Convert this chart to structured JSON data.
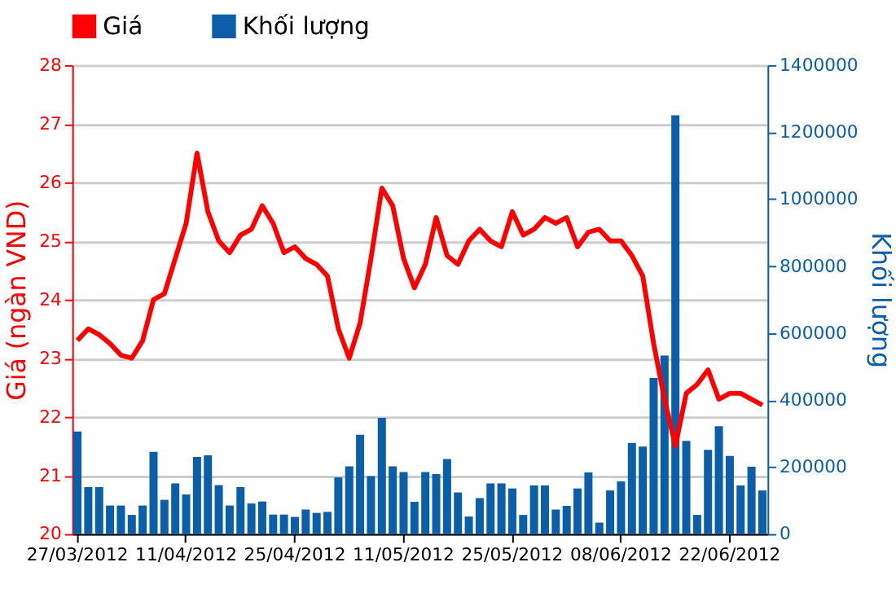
{
  "chart_data": {
    "type": "bar",
    "ylabel": "Giá (ngàn VND)",
    "y2label": "Khối lượng",
    "categories": [
      "27/03/2012",
      null,
      null,
      null,
      null,
      null,
      null,
      null,
      null,
      null,
      "11/04/2012",
      null,
      null,
      null,
      null,
      null,
      null,
      null,
      null,
      null,
      "25/04/2012",
      null,
      null,
      null,
      null,
      null,
      null,
      null,
      null,
      null,
      "11/05/2012",
      null,
      null,
      null,
      null,
      null,
      null,
      null,
      null,
      null,
      "25/05/2012",
      null,
      null,
      null,
      null,
      null,
      null,
      null,
      null,
      null,
      "08/06/2012",
      null,
      null,
      null,
      null,
      null,
      null,
      null,
      null,
      null,
      "22/06/2012",
      null,
      null,
      null
    ],
    "series": [
      {
        "name": "Giá",
        "type": "line",
        "axis": "y",
        "color": "#ff0000",
        "values": [
          23.3,
          23.5,
          23.4,
          23.25,
          23.05,
          23.0,
          23.3,
          24.0,
          24.1,
          24.7,
          25.3,
          26.5,
          25.5,
          25.0,
          24.8,
          25.1,
          25.2,
          25.6,
          25.3,
          24.8,
          24.9,
          24.7,
          24.6,
          24.4,
          23.5,
          23.0,
          23.6,
          24.7,
          25.9,
          25.6,
          24.7,
          24.2,
          24.6,
          25.4,
          24.75,
          24.6,
          25.0,
          25.2,
          25.0,
          24.9,
          25.5,
          25.1,
          25.2,
          25.4,
          25.3,
          25.4,
          24.9,
          25.15,
          25.2,
          25.0,
          25.0,
          24.75,
          24.4,
          23.25,
          22.3,
          21.5,
          22.4,
          22.55,
          22.8,
          22.3,
          22.4,
          22.4,
          22.3,
          22.2
        ]
      },
      {
        "name": "Khối lượng",
        "axis": "y2",
        "color": "#0a5fa8",
        "values": [
          306000,
          140000,
          140000,
          85000,
          85000,
          57000,
          85000,
          245000,
          102000,
          151000,
          118000,
          230000,
          235000,
          146000,
          85000,
          140000,
          91000,
          97000,
          58000,
          58000,
          51000,
          73000,
          63000,
          66000,
          169000,
          202000,
          296000,
          173000,
          347000,
          202000,
          185000,
          96000,
          185000,
          179000,
          224000,
          124000,
          52000,
          107000,
          151000,
          151000,
          136000,
          57000,
          145000,
          145000,
          73000,
          84000,
          136000,
          184000,
          34000,
          130000,
          157000,
          272000,
          261000,
          466000,
          533000,
          1250000,
          278000,
          57000,
          251000,
          322000,
          233000,
          145000,
          201000,
          130000
        ]
      }
    ],
    "ylim": [
      20,
      28
    ],
    "yticks": [
      20,
      21,
      22,
      23,
      24,
      25,
      26,
      27,
      28
    ],
    "y2lim": [
      0,
      1400000
    ],
    "y2ticks": [
      0,
      200000,
      400000,
      600000,
      800000,
      1000000,
      1200000,
      1400000
    ],
    "grid": "y",
    "legend": "top left"
  }
}
